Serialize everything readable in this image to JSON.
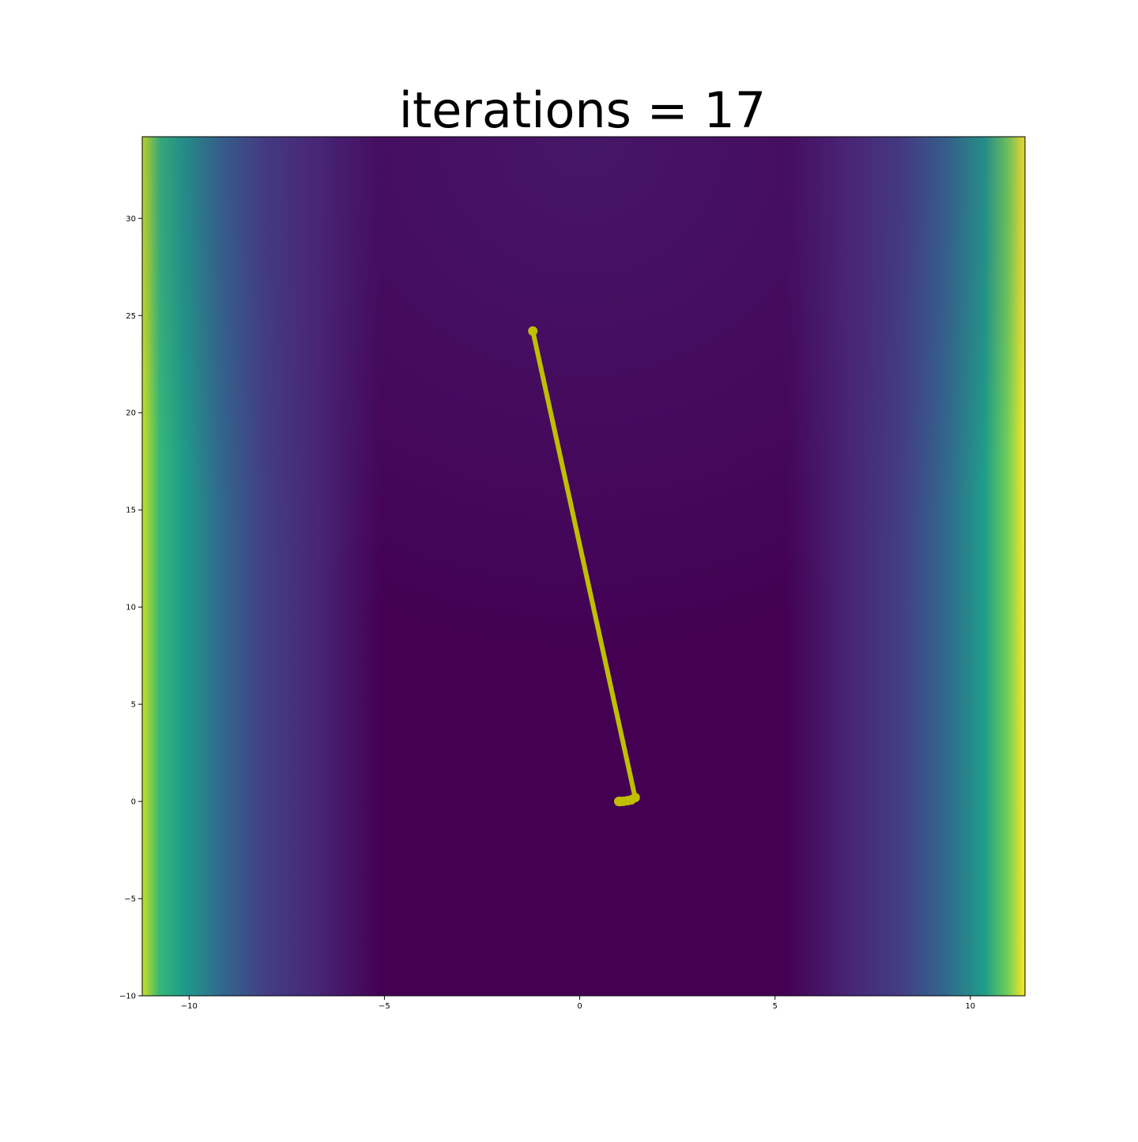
{
  "chart_data": {
    "type": "line",
    "title": "iterations = 17",
    "xlabel": "",
    "ylabel": "",
    "xlim": [
      -11.2,
      11.4
    ],
    "ylim": [
      -10,
      34.2
    ],
    "x_ticks": [
      -10,
      -5,
      0,
      5,
      10
    ],
    "x_tick_labels": [
      "−10",
      "−5",
      "0",
      "5",
      "10"
    ],
    "y_ticks": [
      -10,
      -5,
      0,
      5,
      10,
      15,
      20,
      25,
      30
    ],
    "y_tick_labels": [
      "−10",
      "−5",
      "0",
      "5",
      "10",
      "15",
      "20",
      "25",
      "30"
    ],
    "grid": false,
    "background": "viridis heatmap of a Rosenbrock-like surface",
    "colormap": [
      "#440154",
      "#482878",
      "#3e4989",
      "#31688e",
      "#26828e",
      "#1f9e89",
      "#35b779",
      "#6ece58",
      "#b5de2b",
      "#fde725"
    ],
    "series": [
      {
        "color": "#bfbf00",
        "x": [
          -1.2,
          1.42,
          1.32,
          1.22,
          1.12,
          1.05,
          1.02,
          1.01,
          1.0
        ],
        "y": [
          24.2,
          0.2,
          0.08,
          0.04,
          0.01,
          0.0,
          0.0,
          0.0,
          0.0
        ]
      }
    ]
  }
}
